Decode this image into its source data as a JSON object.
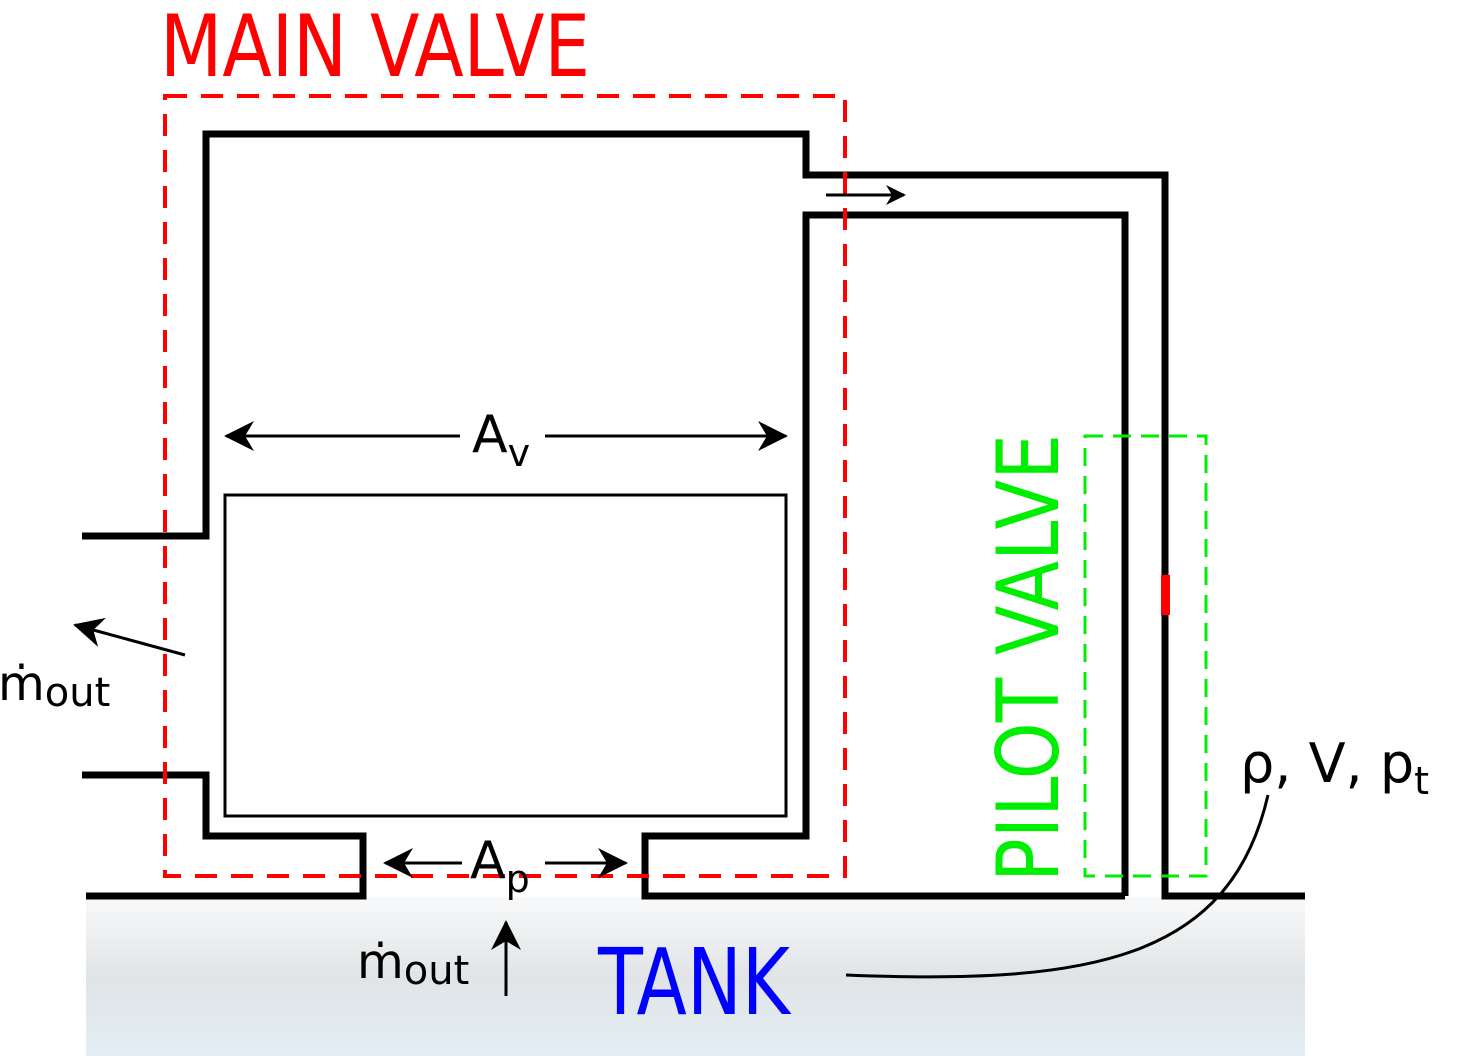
{
  "labels": {
    "main_valve": "MAIN VALVE",
    "pilot_valve": "PILOT VALVE",
    "tank": "TANK",
    "area_valve": {
      "base": "A",
      "sub": "v"
    },
    "area_port": {
      "base": "A",
      "sub": "p"
    },
    "mass_flow_side": {
      "base": "ṁ",
      "sub": "out"
    },
    "mass_flow_bottom": {
      "base": "ṁ",
      "sub": "out"
    },
    "tank_state": {
      "text": "ρ, V, p",
      "sub": "t"
    }
  },
  "colors": {
    "main_valve": "#ff0000",
    "pilot_valve": "#00ee00",
    "tank_label": "#0000ff",
    "walls": "#000000",
    "tank_fill_top": "#f8f9fa",
    "tank_fill_bottom": "#e2eef4"
  }
}
